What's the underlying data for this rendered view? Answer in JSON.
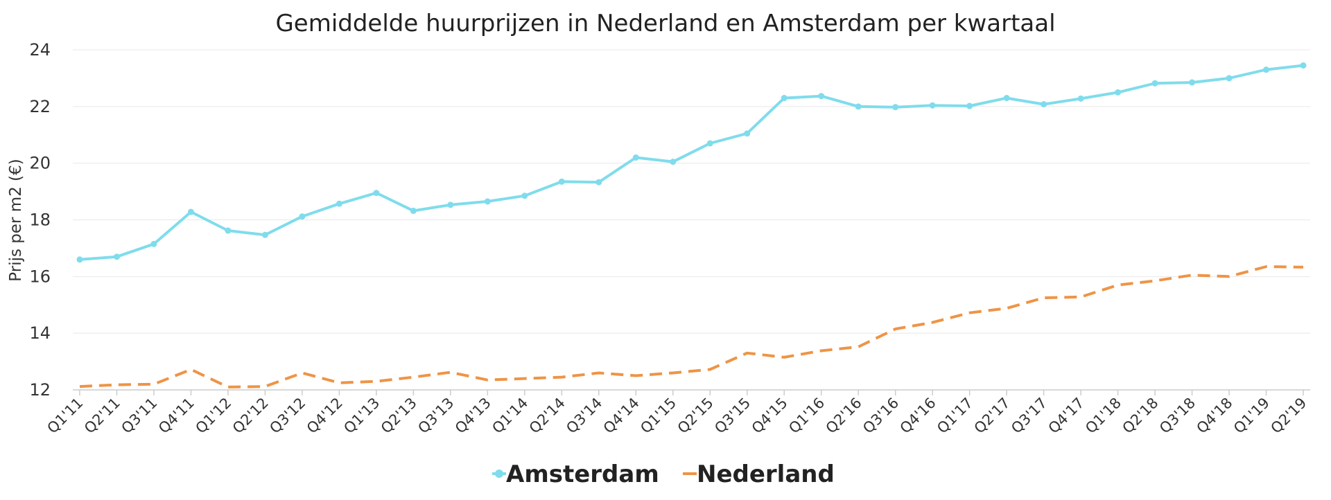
{
  "chart_data": {
    "type": "line",
    "title": "Gemiddelde huurprijzen in Nederland en Amsterdam per kwartaal",
    "ylabel": "Prijs per m2 (€)",
    "xlabel": "",
    "ylim": [
      12,
      24
    ],
    "yticks": [
      12,
      14,
      16,
      18,
      20,
      22,
      24
    ],
    "grid": true,
    "legend_position": "bottom-center",
    "categories": [
      "Q1'11",
      "Q2'11",
      "Q3'11",
      "Q4'11",
      "Q1'12",
      "Q2'12",
      "Q3'12",
      "Q4'12",
      "Q1'13",
      "Q2'13",
      "Q3'13",
      "Q4'13",
      "Q1'14",
      "Q2'14",
      "Q3'14",
      "Q4'14",
      "Q1'15",
      "Q2'15",
      "Q3'15",
      "Q4'15",
      "Q1'16",
      "Q2'16",
      "Q3'16",
      "Q4'16",
      "Q1'17",
      "Q2'17",
      "Q3'17",
      "Q4'17",
      "Q1'18",
      "Q2'18",
      "Q3'18",
      "Q4'18",
      "Q1'19",
      "Q2'19"
    ],
    "series": [
      {
        "name": "Amsterdam",
        "color": "#7fdcec",
        "style": "solid",
        "markers": true,
        "values": [
          16.6,
          16.7,
          17.15,
          18.28,
          17.62,
          17.47,
          18.12,
          18.57,
          18.95,
          18.32,
          18.53,
          18.65,
          18.85,
          19.35,
          19.33,
          20.2,
          20.05,
          20.7,
          21.05,
          22.3,
          22.37,
          22.0,
          21.98,
          22.04,
          22.02,
          22.3,
          22.08,
          22.28,
          22.5,
          22.82,
          22.85,
          23.0,
          23.3,
          23.45
        ]
      },
      {
        "name": "Nederland",
        "color": "#ee9446",
        "style": "dashed",
        "markers": false,
        "values": [
          12.12,
          12.18,
          12.2,
          12.72,
          12.1,
          12.12,
          12.6,
          12.25,
          12.3,
          12.45,
          12.62,
          12.35,
          12.4,
          12.45,
          12.6,
          12.5,
          12.6,
          12.72,
          13.3,
          13.15,
          13.38,
          13.52,
          14.15,
          14.38,
          14.72,
          14.88,
          15.25,
          15.28,
          15.7,
          15.85,
          16.05,
          16.0,
          16.35,
          16.33
        ]
      }
    ]
  }
}
